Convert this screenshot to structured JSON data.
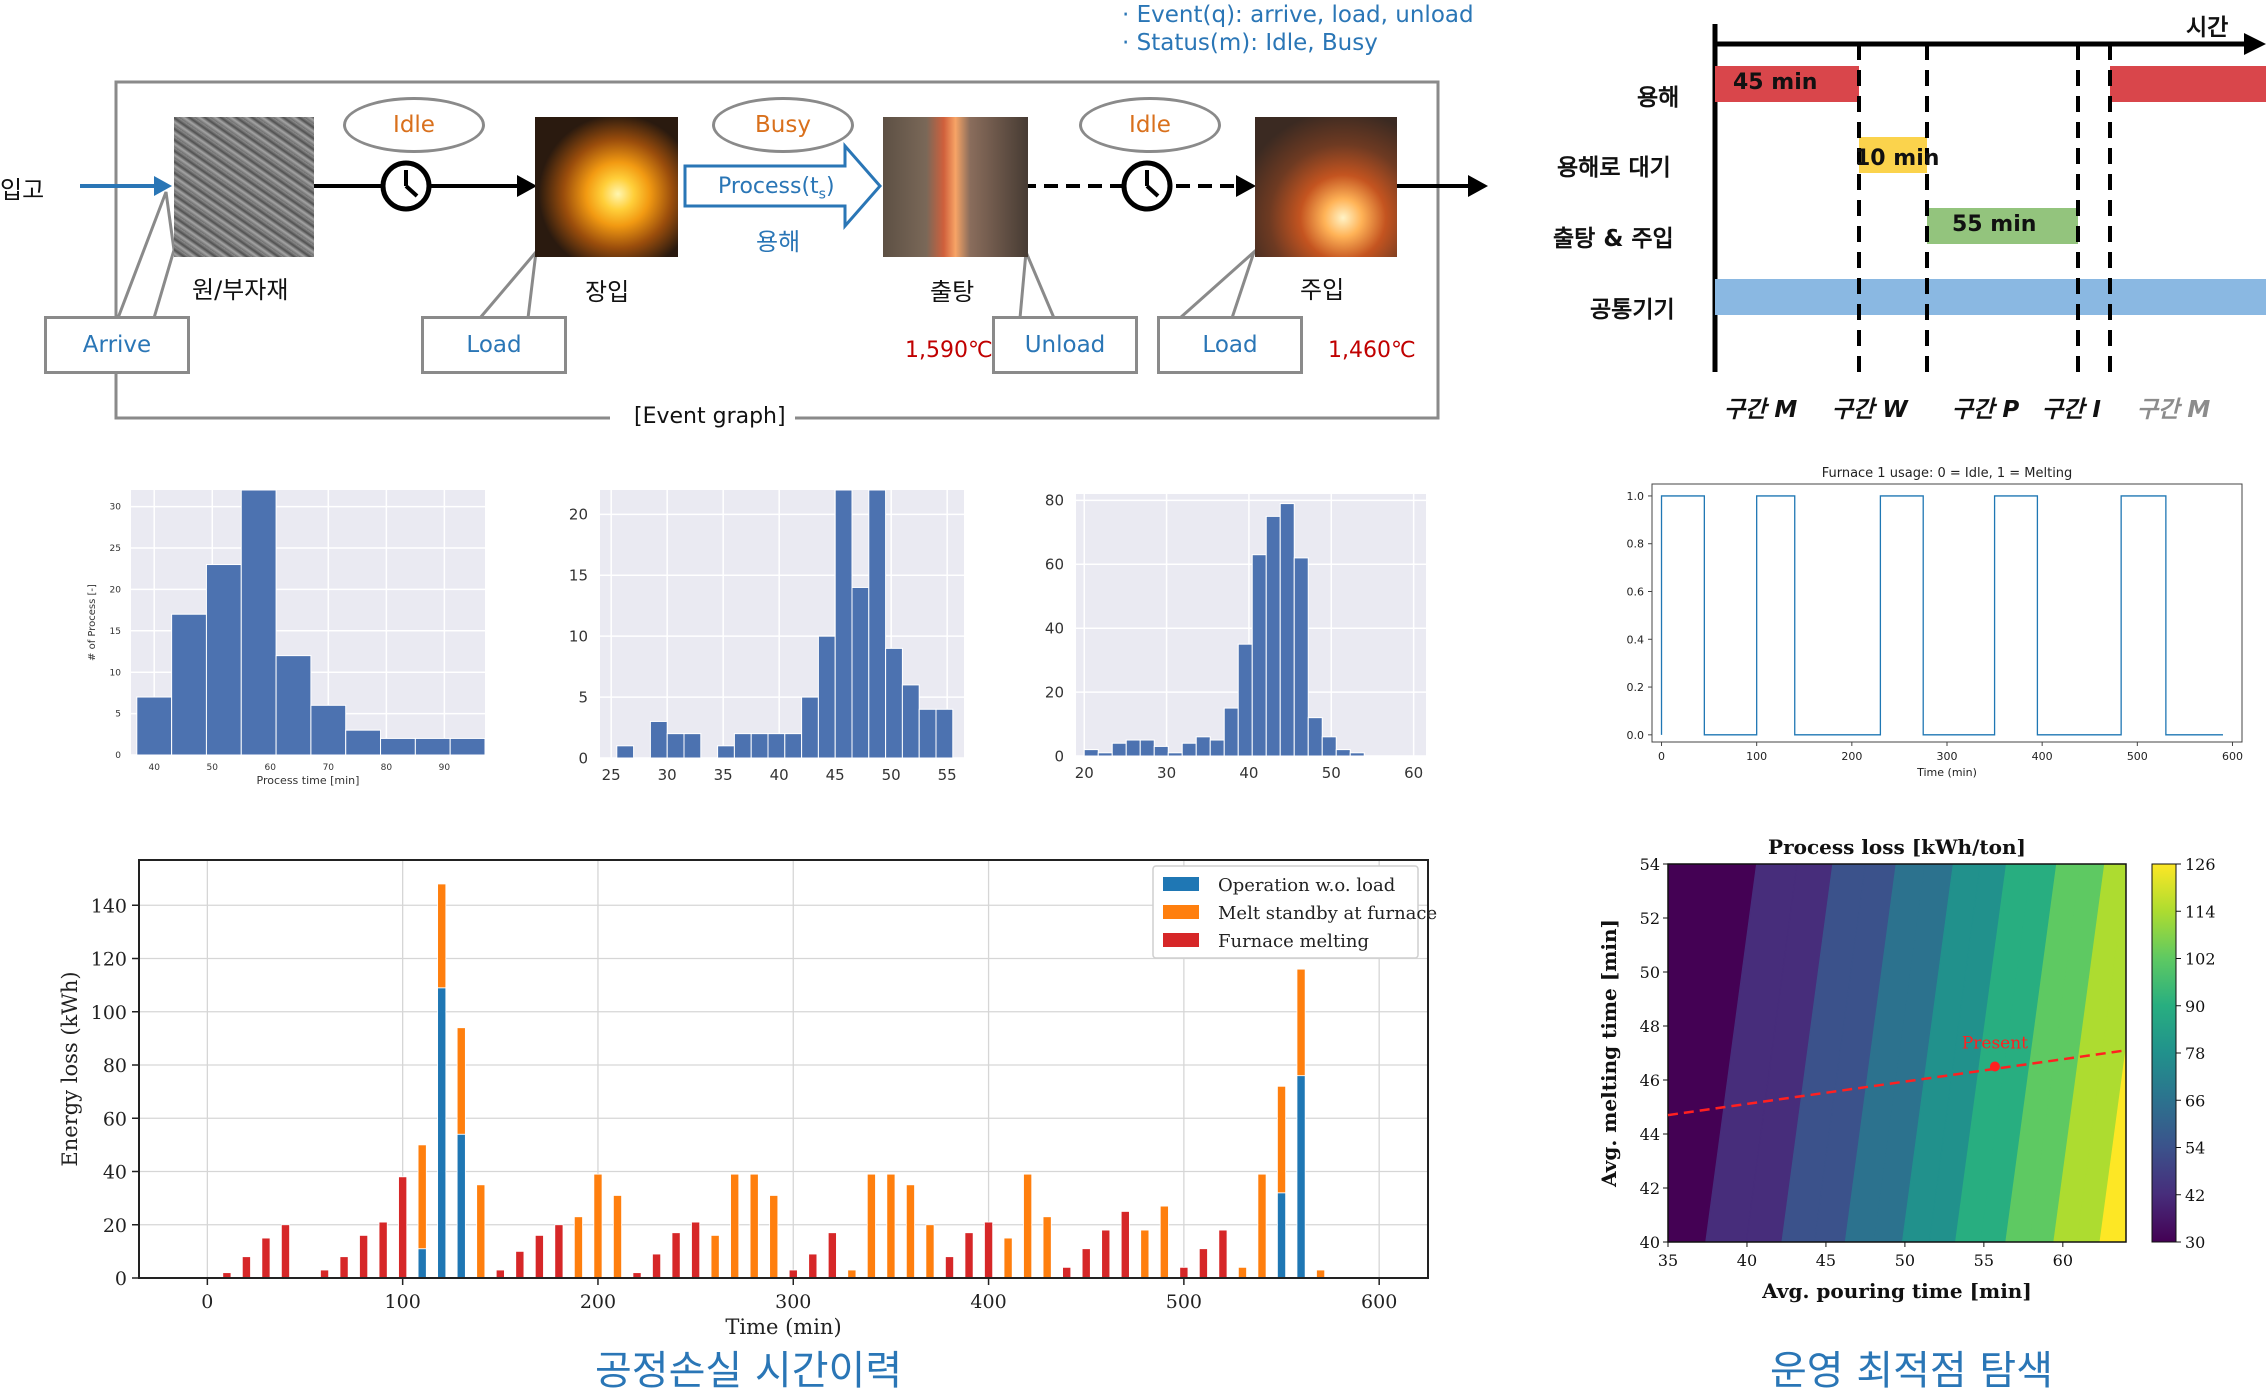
{
  "event_graph": {
    "legend_event": "· Event(q): arrive, load, unload",
    "legend_status": "· Status(m): Idle, Busy",
    "input_label": "입고",
    "stages": [
      "원/부자재",
      "장입",
      "출탕",
      "주입"
    ],
    "states": [
      "Idle",
      "Busy",
      "Idle"
    ],
    "process_label": "Process(t",
    "process_sub": "s",
    "process_close": ")",
    "process_korean": "용해",
    "events": [
      "Arrive",
      "Load",
      "Unload",
      "Load"
    ],
    "temp_tap": "1,590℃",
    "temp_pour": "1,460℃",
    "caption": "[Event graph]",
    "colors": {
      "blue": "#2a76b6",
      "orange": "#d9701c",
      "red": "#c00000"
    }
  },
  "timeline": {
    "time_label": "시간",
    "rows": [
      "용해",
      "용해로 대기",
      "출탕 & 주입",
      "공통기기"
    ],
    "bars": [
      {
        "label": "45 min",
        "color": "#d9464b"
      },
      {
        "label": "10 min",
        "color": "#fbd34c"
      },
      {
        "label": "55 min",
        "color": "#93c47d"
      },
      {
        "label": "",
        "color": "#8ab8e2"
      }
    ],
    "sections": [
      "구간 M",
      "구간 W",
      "구간 P",
      "구간 I",
      "구간 M"
    ]
  },
  "chart_data": [
    {
      "type": "bar",
      "name": "histogram-1",
      "xlabel": "Process time [min]",
      "ylabel": "# of Process [-]",
      "xlim": [
        36,
        97
      ],
      "ylim": [
        0,
        32
      ],
      "xticks": [
        40,
        50,
        60,
        70,
        80,
        90
      ],
      "yticks": [
        0,
        5,
        10,
        15,
        20,
        25,
        30
      ],
      "bin_edges": [
        37,
        43,
        49,
        55,
        61,
        67,
        73,
        79,
        85,
        91,
        97
      ],
      "values": [
        7,
        17,
        23,
        32,
        12,
        6,
        3,
        2,
        2,
        2
      ]
    },
    {
      "type": "bar",
      "name": "histogram-2",
      "xlabel": "",
      "ylabel": "",
      "xlim": [
        24,
        56.5
      ],
      "ylim": [
        0,
        22
      ],
      "xticks": [
        25,
        30,
        35,
        40,
        45,
        50,
        55
      ],
      "yticks": [
        0,
        5,
        10,
        15,
        20
      ],
      "bin_edges": [
        24,
        25.5,
        27,
        28.5,
        30,
        31.5,
        33,
        34.5,
        36,
        37.5,
        39,
        40.5,
        42,
        43.5,
        45,
        46.5,
        48,
        49.5,
        51,
        52.5,
        54,
        55.5
      ],
      "values": [
        0,
        1,
        0,
        3,
        2,
        2,
        0,
        1,
        2,
        2,
        2,
        2,
        5,
        10,
        22,
        14,
        22,
        9,
        6,
        4,
        4
      ]
    },
    {
      "type": "bar",
      "name": "histogram-3",
      "xlabel": "",
      "ylabel": "",
      "xlim": [
        19,
        61.5
      ],
      "ylim": [
        0,
        82
      ],
      "xticks": [
        20,
        30,
        40,
        50,
        60
      ],
      "yticks": [
        0,
        20,
        40,
        60,
        80
      ],
      "bin_edges": [
        20,
        21.7,
        23.4,
        25.1,
        26.8,
        28.5,
        30.2,
        31.9,
        33.6,
        35.3,
        37,
        38.7,
        40.4,
        42.1,
        43.8,
        45.5,
        47.2,
        48.9,
        50.6,
        52.3,
        54,
        55.7
      ],
      "values": [
        2,
        1,
        4,
        5,
        5,
        3,
        1,
        4,
        6,
        5,
        15,
        35,
        63,
        75,
        79,
        62,
        12,
        6,
        2,
        1,
        0
      ]
    },
    {
      "type": "line",
      "name": "furnace-usage",
      "title": "Furnace 1 usage: 0 = Idle, 1 = Melting",
      "xlabel": "Time (min)",
      "ylabel": "",
      "xlim": [
        -10,
        610
      ],
      "ylim": [
        -0.03,
        1.05
      ],
      "xticks": [
        0,
        100,
        200,
        300,
        400,
        500,
        600
      ],
      "yticks": [
        0.0,
        0.2,
        0.4,
        0.6,
        0.8,
        1.0
      ],
      "intervals_on": [
        [
          0,
          45
        ],
        [
          100,
          140
        ],
        [
          230,
          275
        ],
        [
          350,
          395
        ],
        [
          483,
          530
        ]
      ],
      "x_end": 590
    },
    {
      "type": "bar",
      "name": "energy-loss",
      "xlabel": "Time (min)",
      "ylabel": "Energy loss (kWh)",
      "xlim": [
        -35,
        625
      ],
      "ylim": [
        0,
        157
      ],
      "xticks": [
        0,
        100,
        200,
        300,
        400,
        500,
        600
      ],
      "yticks": [
        0,
        20,
        40,
        60,
        80,
        100,
        120,
        140
      ],
      "legend_position": "top-right",
      "series": [
        {
          "name": "Operation w.o. load",
          "color": "#1f77b4"
        },
        {
          "name": "Melt standby at furnace",
          "color": "#ff7f0e"
        },
        {
          "name": "Furnace melting",
          "color": "#d62728"
        }
      ],
      "bars": [
        {
          "x": 10,
          "stack": [
            0,
            0,
            2
          ]
        },
        {
          "x": 20,
          "stack": [
            0,
            0,
            8
          ]
        },
        {
          "x": 30,
          "stack": [
            0,
            0,
            15
          ]
        },
        {
          "x": 40,
          "stack": [
            0,
            0,
            20
          ]
        },
        {
          "x": 60,
          "stack": [
            0,
            0,
            3
          ]
        },
        {
          "x": 70,
          "stack": [
            0,
            0,
            8
          ]
        },
        {
          "x": 80,
          "stack": [
            0,
            0,
            16
          ]
        },
        {
          "x": 90,
          "stack": [
            0,
            0,
            21
          ]
        },
        {
          "x": 100,
          "stack": [
            0,
            0,
            38
          ]
        },
        {
          "x": 110,
          "stack": [
            11,
            39,
            0
          ]
        },
        {
          "x": 120,
          "stack": [
            109,
            39,
            0
          ]
        },
        {
          "x": 130,
          "stack": [
            54,
            40,
            0
          ]
        },
        {
          "x": 140,
          "stack": [
            0,
            35,
            0
          ]
        },
        {
          "x": 150,
          "stack": [
            0,
            0,
            3
          ]
        },
        {
          "x": 160,
          "stack": [
            0,
            0,
            10
          ]
        },
        {
          "x": 170,
          "stack": [
            0,
            0,
            16
          ]
        },
        {
          "x": 180,
          "stack": [
            0,
            0,
            20
          ]
        },
        {
          "x": 190,
          "stack": [
            0,
            23,
            0
          ]
        },
        {
          "x": 200,
          "stack": [
            0,
            39,
            0
          ]
        },
        {
          "x": 210,
          "stack": [
            0,
            31,
            0
          ]
        },
        {
          "x": 220,
          "stack": [
            0,
            0,
            2
          ]
        },
        {
          "x": 230,
          "stack": [
            0,
            0,
            9
          ]
        },
        {
          "x": 240,
          "stack": [
            0,
            0,
            17
          ]
        },
        {
          "x": 250,
          "stack": [
            0,
            0,
            21
          ]
        },
        {
          "x": 260,
          "stack": [
            0,
            16,
            0
          ]
        },
        {
          "x": 270,
          "stack": [
            0,
            39,
            0
          ]
        },
        {
          "x": 280,
          "stack": [
            0,
            39,
            0
          ]
        },
        {
          "x": 290,
          "stack": [
            0,
            31,
            0
          ]
        },
        {
          "x": 300,
          "stack": [
            0,
            0,
            3
          ]
        },
        {
          "x": 310,
          "stack": [
            0,
            0,
            9
          ]
        },
        {
          "x": 320,
          "stack": [
            0,
            0,
            17
          ]
        },
        {
          "x": 330,
          "stack": [
            0,
            3,
            0
          ]
        },
        {
          "x": 340,
          "stack": [
            0,
            39,
            0
          ]
        },
        {
          "x": 350,
          "stack": [
            0,
            39,
            0
          ]
        },
        {
          "x": 360,
          "stack": [
            0,
            35,
            0
          ]
        },
        {
          "x": 370,
          "stack": [
            0,
            20,
            0
          ]
        },
        {
          "x": 380,
          "stack": [
            0,
            0,
            8
          ]
        },
        {
          "x": 390,
          "stack": [
            0,
            0,
            17
          ]
        },
        {
          "x": 400,
          "stack": [
            0,
            0,
            21
          ]
        },
        {
          "x": 410,
          "stack": [
            0,
            15,
            0
          ]
        },
        {
          "x": 420,
          "stack": [
            0,
            39,
            0
          ]
        },
        {
          "x": 430,
          "stack": [
            0,
            23,
            0
          ]
        },
        {
          "x": 440,
          "stack": [
            0,
            0,
            4
          ]
        },
        {
          "x": 450,
          "stack": [
            0,
            0,
            11
          ]
        },
        {
          "x": 460,
          "stack": [
            0,
            0,
            18
          ]
        },
        {
          "x": 470,
          "stack": [
            0,
            0,
            25
          ]
        },
        {
          "x": 480,
          "stack": [
            0,
            18,
            0
          ]
        },
        {
          "x": 490,
          "stack": [
            0,
            27,
            0
          ]
        },
        {
          "x": 500,
          "stack": [
            0,
            0,
            4
          ]
        },
        {
          "x": 510,
          "stack": [
            0,
            0,
            11
          ]
        },
        {
          "x": 520,
          "stack": [
            0,
            0,
            18
          ]
        },
        {
          "x": 530,
          "stack": [
            0,
            4,
            0
          ]
        },
        {
          "x": 540,
          "stack": [
            0,
            39,
            0
          ]
        },
        {
          "x": 550,
          "stack": [
            32,
            40,
            0
          ]
        },
        {
          "x": 560,
          "stack": [
            76,
            40,
            0
          ]
        },
        {
          "x": 570,
          "stack": [
            0,
            3,
            0
          ]
        }
      ]
    },
    {
      "type": "heatmap",
      "name": "process-loss-contour",
      "title": "Process loss [kWh/ton]",
      "xlabel": "Avg. pouring time [min]",
      "ylabel": "Avg. melting time [min]",
      "xlim": [
        35,
        64
      ],
      "ylim": [
        40,
        54
      ],
      "xticks": [
        35,
        40,
        45,
        50,
        55,
        60
      ],
      "yticks": [
        40,
        42,
        44,
        46,
        48,
        50,
        52,
        54
      ],
      "colorbar_ticks": [
        30,
        42,
        54,
        66,
        78,
        90,
        102,
        114,
        126
      ],
      "colorbar_range": [
        30,
        126
      ],
      "annotation": "Present",
      "present_point": [
        55.7,
        46.5
      ],
      "trend_line": [
        [
          35,
          44.7
        ],
        [
          64,
          47.1
        ]
      ]
    }
  ],
  "captions": {
    "left": "공정손실 시간이력",
    "right": "운영 최적점 탐색"
  }
}
